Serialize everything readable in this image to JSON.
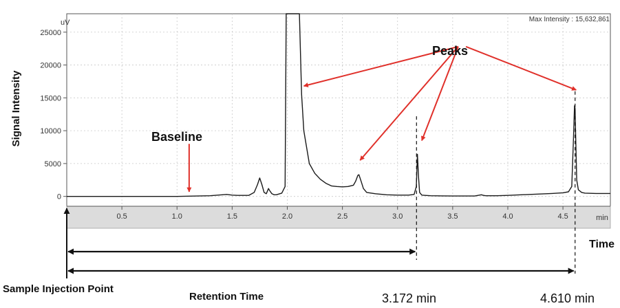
{
  "chart_data": {
    "type": "line",
    "title": "",
    "ylabel": "Signal Intensity",
    "xlabel": "Time",
    "y_unit": "uV",
    "x_unit": "min",
    "max_intensity_label": "Max Intensity : 15,632,861",
    "xlim": [
      0.0,
      4.93
    ],
    "ylim": [
      -1500,
      27800
    ],
    "x_ticks": [
      0.5,
      1.0,
      1.5,
      2.0,
      2.5,
      3.0,
      3.5,
      4.0,
      4.5
    ],
    "x_tick_labels": [
      "0.5",
      "1.0",
      "1.5",
      "2.0",
      "2.5",
      "3.0",
      "3.5",
      "4.0",
      "4.5"
    ],
    "y_ticks": [
      0,
      5000,
      10000,
      15000,
      20000,
      25000
    ],
    "y_tick_labels": [
      "0",
      "5000",
      "10000",
      "15000",
      "20000",
      "25000"
    ],
    "grid": true,
    "series": [
      {
        "color": "#1a1a1a",
        "x": [
          0.0,
          0.5,
          1.0,
          1.3,
          1.45,
          1.5,
          1.55,
          1.65,
          1.7,
          1.73,
          1.75,
          1.77,
          1.79,
          1.81,
          1.83,
          1.84,
          1.86,
          1.88,
          1.9,
          1.95,
          1.98,
          1.99,
          2.0,
          2.01,
          2.05,
          2.1,
          2.11,
          2.13,
          2.15,
          2.18,
          2.2,
          2.25,
          2.3,
          2.35,
          2.4,
          2.45,
          2.5,
          2.55,
          2.6,
          2.62,
          2.64,
          2.65,
          2.67,
          2.69,
          2.72,
          2.8,
          2.9,
          3.0,
          3.1,
          3.15,
          3.17,
          3.18,
          3.19,
          3.2,
          3.22,
          3.25,
          3.3,
          3.4,
          3.5,
          3.6,
          3.7,
          3.76,
          3.78,
          3.8,
          3.9,
          4.0,
          4.2,
          4.4,
          4.5,
          4.55,
          4.58,
          4.595,
          4.605,
          4.61,
          4.615,
          4.625,
          4.64,
          4.67,
          4.7,
          4.8,
          4.93
        ],
        "y": [
          0,
          0,
          0,
          100,
          300,
          200,
          150,
          150,
          600,
          1800,
          2800,
          1800,
          600,
          400,
          1200,
          900,
          400,
          250,
          250,
          500,
          1500,
          28000,
          28000,
          28000,
          28000,
          28000,
          28000,
          15500,
          10000,
          7000,
          5000,
          3500,
          2600,
          2000,
          1600,
          1500,
          1450,
          1500,
          1700,
          2300,
          3200,
          3300,
          2300,
          1200,
          600,
          400,
          250,
          200,
          200,
          300,
          1500,
          6400,
          3000,
          600,
          200,
          150,
          100,
          80,
          60,
          60,
          60,
          250,
          150,
          100,
          100,
          150,
          300,
          450,
          550,
          700,
          1500,
          8500,
          13800,
          13400,
          9500,
          2500,
          1000,
          600,
          500,
          450,
          450
        ]
      }
    ],
    "vertical_markers": [
      3.172,
      4.61
    ],
    "annotations": {
      "peaks_label": "Peaks",
      "baseline_label": "Baseline",
      "sample_injection_label": "Sample Injection Point",
      "retention_time_label": "Retention Time",
      "rt1_label": "3.172 min",
      "rt2_label": "4.610 min"
    }
  },
  "colors": {
    "trace": "#1a1a1a",
    "arrow": "#e0302a",
    "plot_bg": "#ffffff",
    "grid": "#c8c8c8",
    "axis_box": "#555555",
    "strip": "#dcdcdc"
  }
}
